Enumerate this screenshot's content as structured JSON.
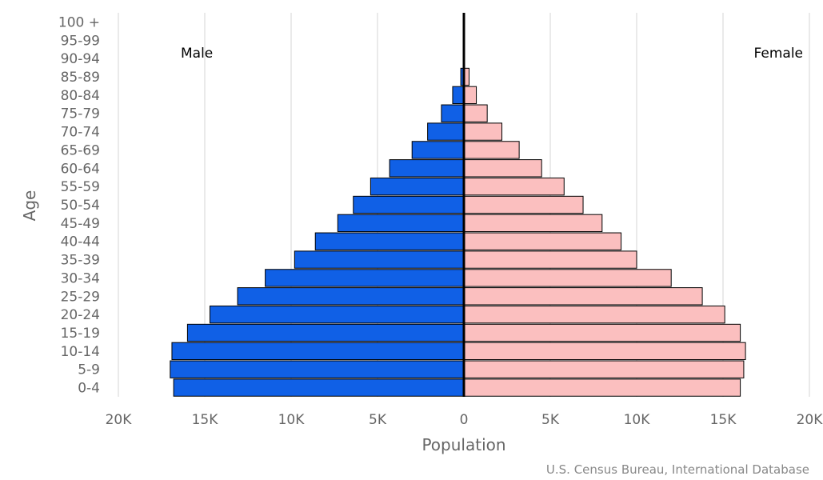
{
  "chart_data": {
    "type": "bar",
    "orientation": "horizontal",
    "layout": "population-pyramid",
    "ylabel": "Age",
    "xlabel": "Population",
    "credit": "U.S. Census Bureau, International Database",
    "xlim": [
      -20000,
      20000
    ],
    "x_ticks": [
      -20000,
      -15000,
      -10000,
      -5000,
      0,
      5000,
      10000,
      15000,
      20000
    ],
    "x_tick_labels": [
      "20K",
      "15K",
      "10K",
      "5K",
      "0",
      "5K",
      "10K",
      "15K",
      "20K"
    ],
    "grid": true,
    "categories": [
      "0-4",
      "5-9",
      "10-14",
      "15-19",
      "20-24",
      "25-29",
      "30-34",
      "35-39",
      "40-44",
      "45-49",
      "50-54",
      "55-59",
      "60-64",
      "65-69",
      "70-74",
      "75-79",
      "80-84",
      "85-89",
      "90-94",
      "95-99",
      "100 +"
    ],
    "series": [
      {
        "name": "Male",
        "color": "#1060e6",
        "values": [
          16800,
          17000,
          16900,
          16000,
          14700,
          13100,
          11500,
          9800,
          8600,
          7300,
          6400,
          5400,
          4300,
          3000,
          2100,
          1300,
          650,
          180,
          20,
          5,
          0
        ]
      },
      {
        "name": "Female",
        "color": "#fbbfbf",
        "values": [
          16000,
          16200,
          16300,
          16000,
          15100,
          13800,
          12000,
          10000,
          9100,
          8000,
          6900,
          5800,
          4500,
          3200,
          2200,
          1350,
          720,
          300,
          40,
          10,
          0
        ]
      }
    ],
    "legend": [
      "Male",
      "Female"
    ],
    "legend_placement": "top"
  }
}
